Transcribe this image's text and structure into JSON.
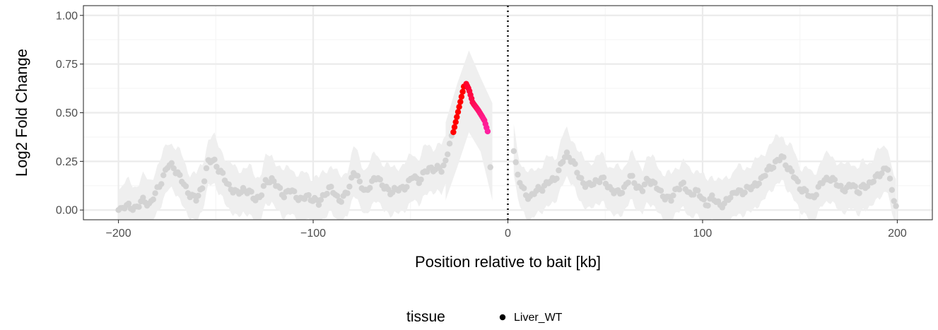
{
  "chart_data": {
    "type": "scatter",
    "xlabel": "Position relative to bait [kb]",
    "ylabel": "Log2 Fold Change",
    "xlim": [
      -218,
      218
    ],
    "ylim": [
      -0.05,
      1.05
    ],
    "x_ticks": [
      -200,
      -100,
      0,
      100,
      200
    ],
    "x_tick_labels": [
      "−200",
      "−100",
      "0",
      "100",
      "200"
    ],
    "y_ticks": [
      0,
      0.25,
      0.5,
      0.75,
      1.0
    ],
    "y_tick_labels": [
      "0.00",
      "0.25",
      "0.50",
      "0.75",
      "1.00"
    ],
    "grid": true,
    "bait_line_x": 0,
    "legend": {
      "title": "tissue",
      "position": "bottom",
      "entries": [
        "Liver_WT"
      ]
    },
    "colors": {
      "background_points": "#d3d3d3",
      "ribbon": "#efefef",
      "peak_left": "#ff0000",
      "peak_right": "#ff1a8c",
      "grid_major": "#ebebeb",
      "grid_minor": "#f5f5f5",
      "legend_point": "#000000"
    },
    "series": [
      {
        "name": "Liver_WT",
        "x_range": [
          -200,
          200
        ],
        "excluded_range": [
          -7,
          3
        ],
        "ribbon_halfwidth": 0.12,
        "profile": [
          [
            -200,
            0.0
          ],
          [
            -197,
            0.02
          ],
          [
            -193,
            0.01
          ],
          [
            -190,
            0.02
          ],
          [
            -187,
            0.05
          ],
          [
            -184,
            0.03
          ],
          [
            -181,
            0.08
          ],
          [
            -178,
            0.15
          ],
          [
            -175,
            0.22
          ],
          [
            -172,
            0.23
          ],
          [
            -169,
            0.18
          ],
          [
            -166,
            0.12
          ],
          [
            -163,
            0.08
          ],
          [
            -160,
            0.05
          ],
          [
            -157,
            0.12
          ],
          [
            -154,
            0.24
          ],
          [
            -151,
            0.26
          ],
          [
            -148,
            0.2
          ],
          [
            -145,
            0.15
          ],
          [
            -142,
            0.11
          ],
          [
            -139,
            0.08
          ],
          [
            -136,
            0.11
          ],
          [
            -133,
            0.09
          ],
          [
            -130,
            0.06
          ],
          [
            -127,
            0.07
          ],
          [
            -124,
            0.15
          ],
          [
            -121,
            0.16
          ],
          [
            -118,
            0.11
          ],
          [
            -115,
            0.08
          ],
          [
            -112,
            0.1
          ],
          [
            -109,
            0.08
          ],
          [
            -106,
            0.05
          ],
          [
            -103,
            0.07
          ],
          [
            -100,
            0.06
          ],
          [
            -97,
            0.03
          ],
          [
            -94,
            0.09
          ],
          [
            -91,
            0.11
          ],
          [
            -88,
            0.07
          ],
          [
            -85,
            0.05
          ],
          [
            -82,
            0.1
          ],
          [
            -79,
            0.21
          ],
          [
            -76,
            0.13
          ],
          [
            -73,
            0.1
          ],
          [
            -70,
            0.13
          ],
          [
            -67,
            0.18
          ],
          [
            -64,
            0.12
          ],
          [
            -61,
            0.09
          ],
          [
            -58,
            0.11
          ],
          [
            -55,
            0.1
          ],
          [
            -52,
            0.13
          ],
          [
            -49,
            0.17
          ],
          [
            -46,
            0.15
          ],
          [
            -43,
            0.19
          ],
          [
            -40,
            0.21
          ],
          [
            -37,
            0.22
          ],
          [
            -34,
            0.2
          ],
          [
            -32,
            0.25
          ],
          [
            -30,
            0.35
          ],
          [
            -28,
            0.38
          ]
        ],
        "profile_right": [
          [
            3,
            0.32
          ],
          [
            5,
            0.18
          ],
          [
            7,
            0.12
          ],
          [
            9,
            0.08
          ],
          [
            12,
            0.07
          ],
          [
            15,
            0.1
          ],
          [
            18,
            0.12
          ],
          [
            21,
            0.14
          ],
          [
            24,
            0.16
          ],
          [
            27,
            0.22
          ],
          [
            30,
            0.29
          ],
          [
            33,
            0.26
          ],
          [
            36,
            0.18
          ],
          [
            39,
            0.14
          ],
          [
            42,
            0.12
          ],
          [
            45,
            0.15
          ],
          [
            48,
            0.16
          ],
          [
            51,
            0.13
          ],
          [
            54,
            0.1
          ],
          [
            57,
            0.08
          ],
          [
            60,
            0.12
          ],
          [
            63,
            0.17
          ],
          [
            66,
            0.13
          ],
          [
            69,
            0.1
          ],
          [
            72,
            0.16
          ],
          [
            75,
            0.14
          ],
          [
            78,
            0.09
          ],
          [
            81,
            0.07
          ],
          [
            84,
            0.05
          ],
          [
            87,
            0.12
          ],
          [
            90,
            0.13
          ],
          [
            93,
            0.08
          ],
          [
            96,
            0.1
          ],
          [
            99,
            0.07
          ],
          [
            102,
            0.03
          ],
          [
            105,
            0.06
          ],
          [
            108,
            0.04
          ],
          [
            111,
            0.02
          ],
          [
            114,
            0.07
          ],
          [
            117,
            0.1
          ],
          [
            120,
            0.08
          ],
          [
            123,
            0.12
          ],
          [
            126,
            0.11
          ],
          [
            129,
            0.15
          ],
          [
            132,
            0.18
          ],
          [
            135,
            0.22
          ],
          [
            138,
            0.25
          ],
          [
            141,
            0.27
          ],
          [
            144,
            0.22
          ],
          [
            147,
            0.17
          ],
          [
            150,
            0.12
          ],
          [
            153,
            0.09
          ],
          [
            156,
            0.06
          ],
          [
            159,
            0.1
          ],
          [
            162,
            0.15
          ],
          [
            165,
            0.17
          ],
          [
            168,
            0.14
          ],
          [
            171,
            0.12
          ],
          [
            174,
            0.1
          ],
          [
            177,
            0.14
          ],
          [
            180,
            0.09
          ],
          [
            183,
            0.12
          ],
          [
            186,
            0.14
          ],
          [
            189,
            0.16
          ],
          [
            192,
            0.2
          ],
          [
            195,
            0.22
          ],
          [
            197,
            0.1
          ],
          [
            199,
            0.04
          ],
          [
            200,
            0.02
          ]
        ],
        "isolated_points": [
          [
            -9,
            0.22
          ]
        ],
        "peak_left_profile": [
          [
            -28,
            0.4
          ],
          [
            -22,
            0.66
          ]
        ],
        "peak_right_profile": [
          [
            -22,
            0.66
          ],
          [
            -20,
            0.62
          ],
          [
            -18,
            0.55
          ],
          [
            -15,
            0.51
          ],
          [
            -12,
            0.46
          ],
          [
            -10,
            0.39
          ]
        ],
        "peak_ribbon_upper": [
          [
            -32,
            0.45
          ],
          [
            -26,
            0.65
          ],
          [
            -20,
            0.82
          ],
          [
            -14,
            0.68
          ],
          [
            -8,
            0.55
          ]
        ]
      }
    ]
  }
}
